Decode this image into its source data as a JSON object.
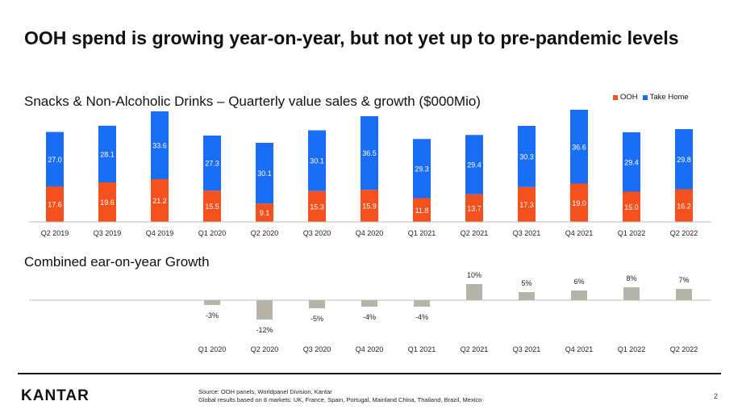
{
  "title": "OOH spend is growing year-on-year, but not yet up to pre-pandemic levels",
  "chart_data": [
    {
      "type": "bar",
      "stacked": true,
      "title": "Snacks & Non-Alcoholic Drinks – Quarterly value sales & growth ($000Mio)",
      "categories": [
        "Q2 2019",
        "Q3 2019",
        "Q4 2019",
        "Q1 2020",
        "Q2 2020",
        "Q3 2020",
        "Q4 2020",
        "Q1 2021",
        "Q2 2021",
        "Q3 2021",
        "Q4 2021",
        "Q1 2022",
        "Q2 2022"
      ],
      "series": [
        {
          "name": "OOH",
          "color": "#f4511e",
          "values": [
            17.6,
            19.6,
            21.2,
            15.5,
            9.1,
            15.3,
            15.9,
            11.8,
            13.7,
            17.3,
            19.0,
            15.0,
            16.2
          ]
        },
        {
          "name": "Take Home",
          "color": "#1a6ef5",
          "values": [
            27.0,
            28.1,
            33.6,
            27.3,
            30.1,
            30.1,
            36.5,
            29.3,
            29.4,
            30.3,
            36.6,
            29.4,
            29.8
          ]
        }
      ],
      "legend_position": "top-right"
    },
    {
      "type": "bar",
      "title": "Combined ear-on-year Growth",
      "categories": [
        "Q1 2020",
        "Q2 2020",
        "Q3 2020",
        "Q4 2020",
        "Q1 2021",
        "Q2 2021",
        "Q3 2021",
        "Q4 2021",
        "Q1 2022",
        "Q2 2022"
      ],
      "values": [
        -3,
        -12,
        -5,
        -4,
        -4,
        10,
        5,
        6,
        8,
        7
      ],
      "labels": [
        "-3%",
        "-12%",
        "-5%",
        "-4%",
        "-4%",
        "10%",
        "5%",
        "6%",
        "8%",
        "7%"
      ],
      "color": "#b5b4a8",
      "unit": "%"
    }
  ],
  "footer": {
    "logo": "KANTAR",
    "source_line1": "Source: OOH panels, Worldpanel Division, Kantar",
    "source_line2": "Global results based on 8 markets: UK, France, Spain, Portugal, Mainland China, Thailand, Brazil, Mexico",
    "page_number": "2"
  }
}
